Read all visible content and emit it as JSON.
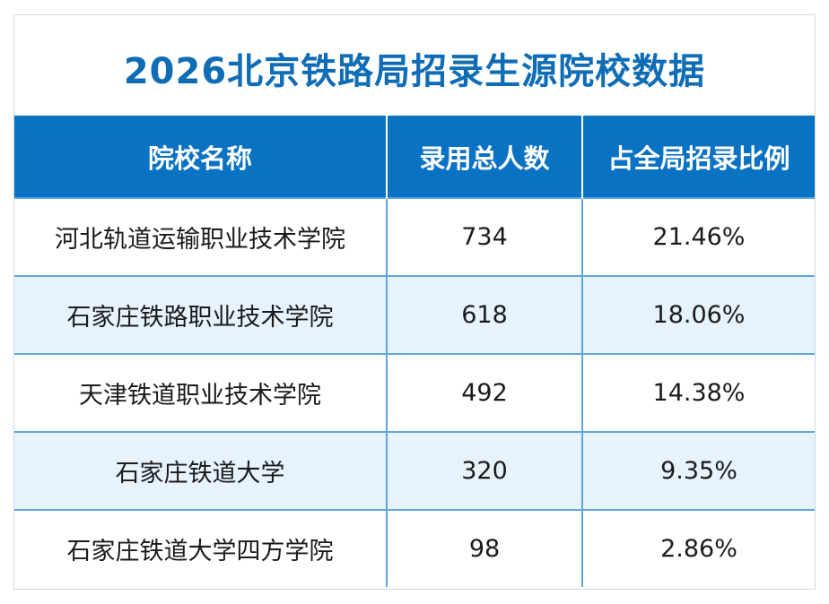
{
  "title": "2026北京铁路局招录生源院校数据",
  "table": {
    "headers": [
      "院校名称",
      "录用总人数",
      "占全局招录比例"
    ],
    "rows": [
      {
        "school": "河北轨道运输职业技术学院",
        "count": "734",
        "ratio": "21.46%"
      },
      {
        "school": "石家庄铁路职业技术学院",
        "count": "618",
        "ratio": "18.06%"
      },
      {
        "school": "天津铁道职业技术学院",
        "count": "492",
        "ratio": "14.38%"
      },
      {
        "school": "石家庄铁道大学",
        "count": "320",
        "ratio": "9.35%"
      },
      {
        "school": "石家庄铁道大学四方学院",
        "count": "98",
        "ratio": "2.86%"
      }
    ]
  },
  "colors": {
    "title": "#0f6db6",
    "header_bg": "#0a72c3",
    "stripe_bg": "#e6f2fc",
    "grid": "#5fa6dc"
  }
}
